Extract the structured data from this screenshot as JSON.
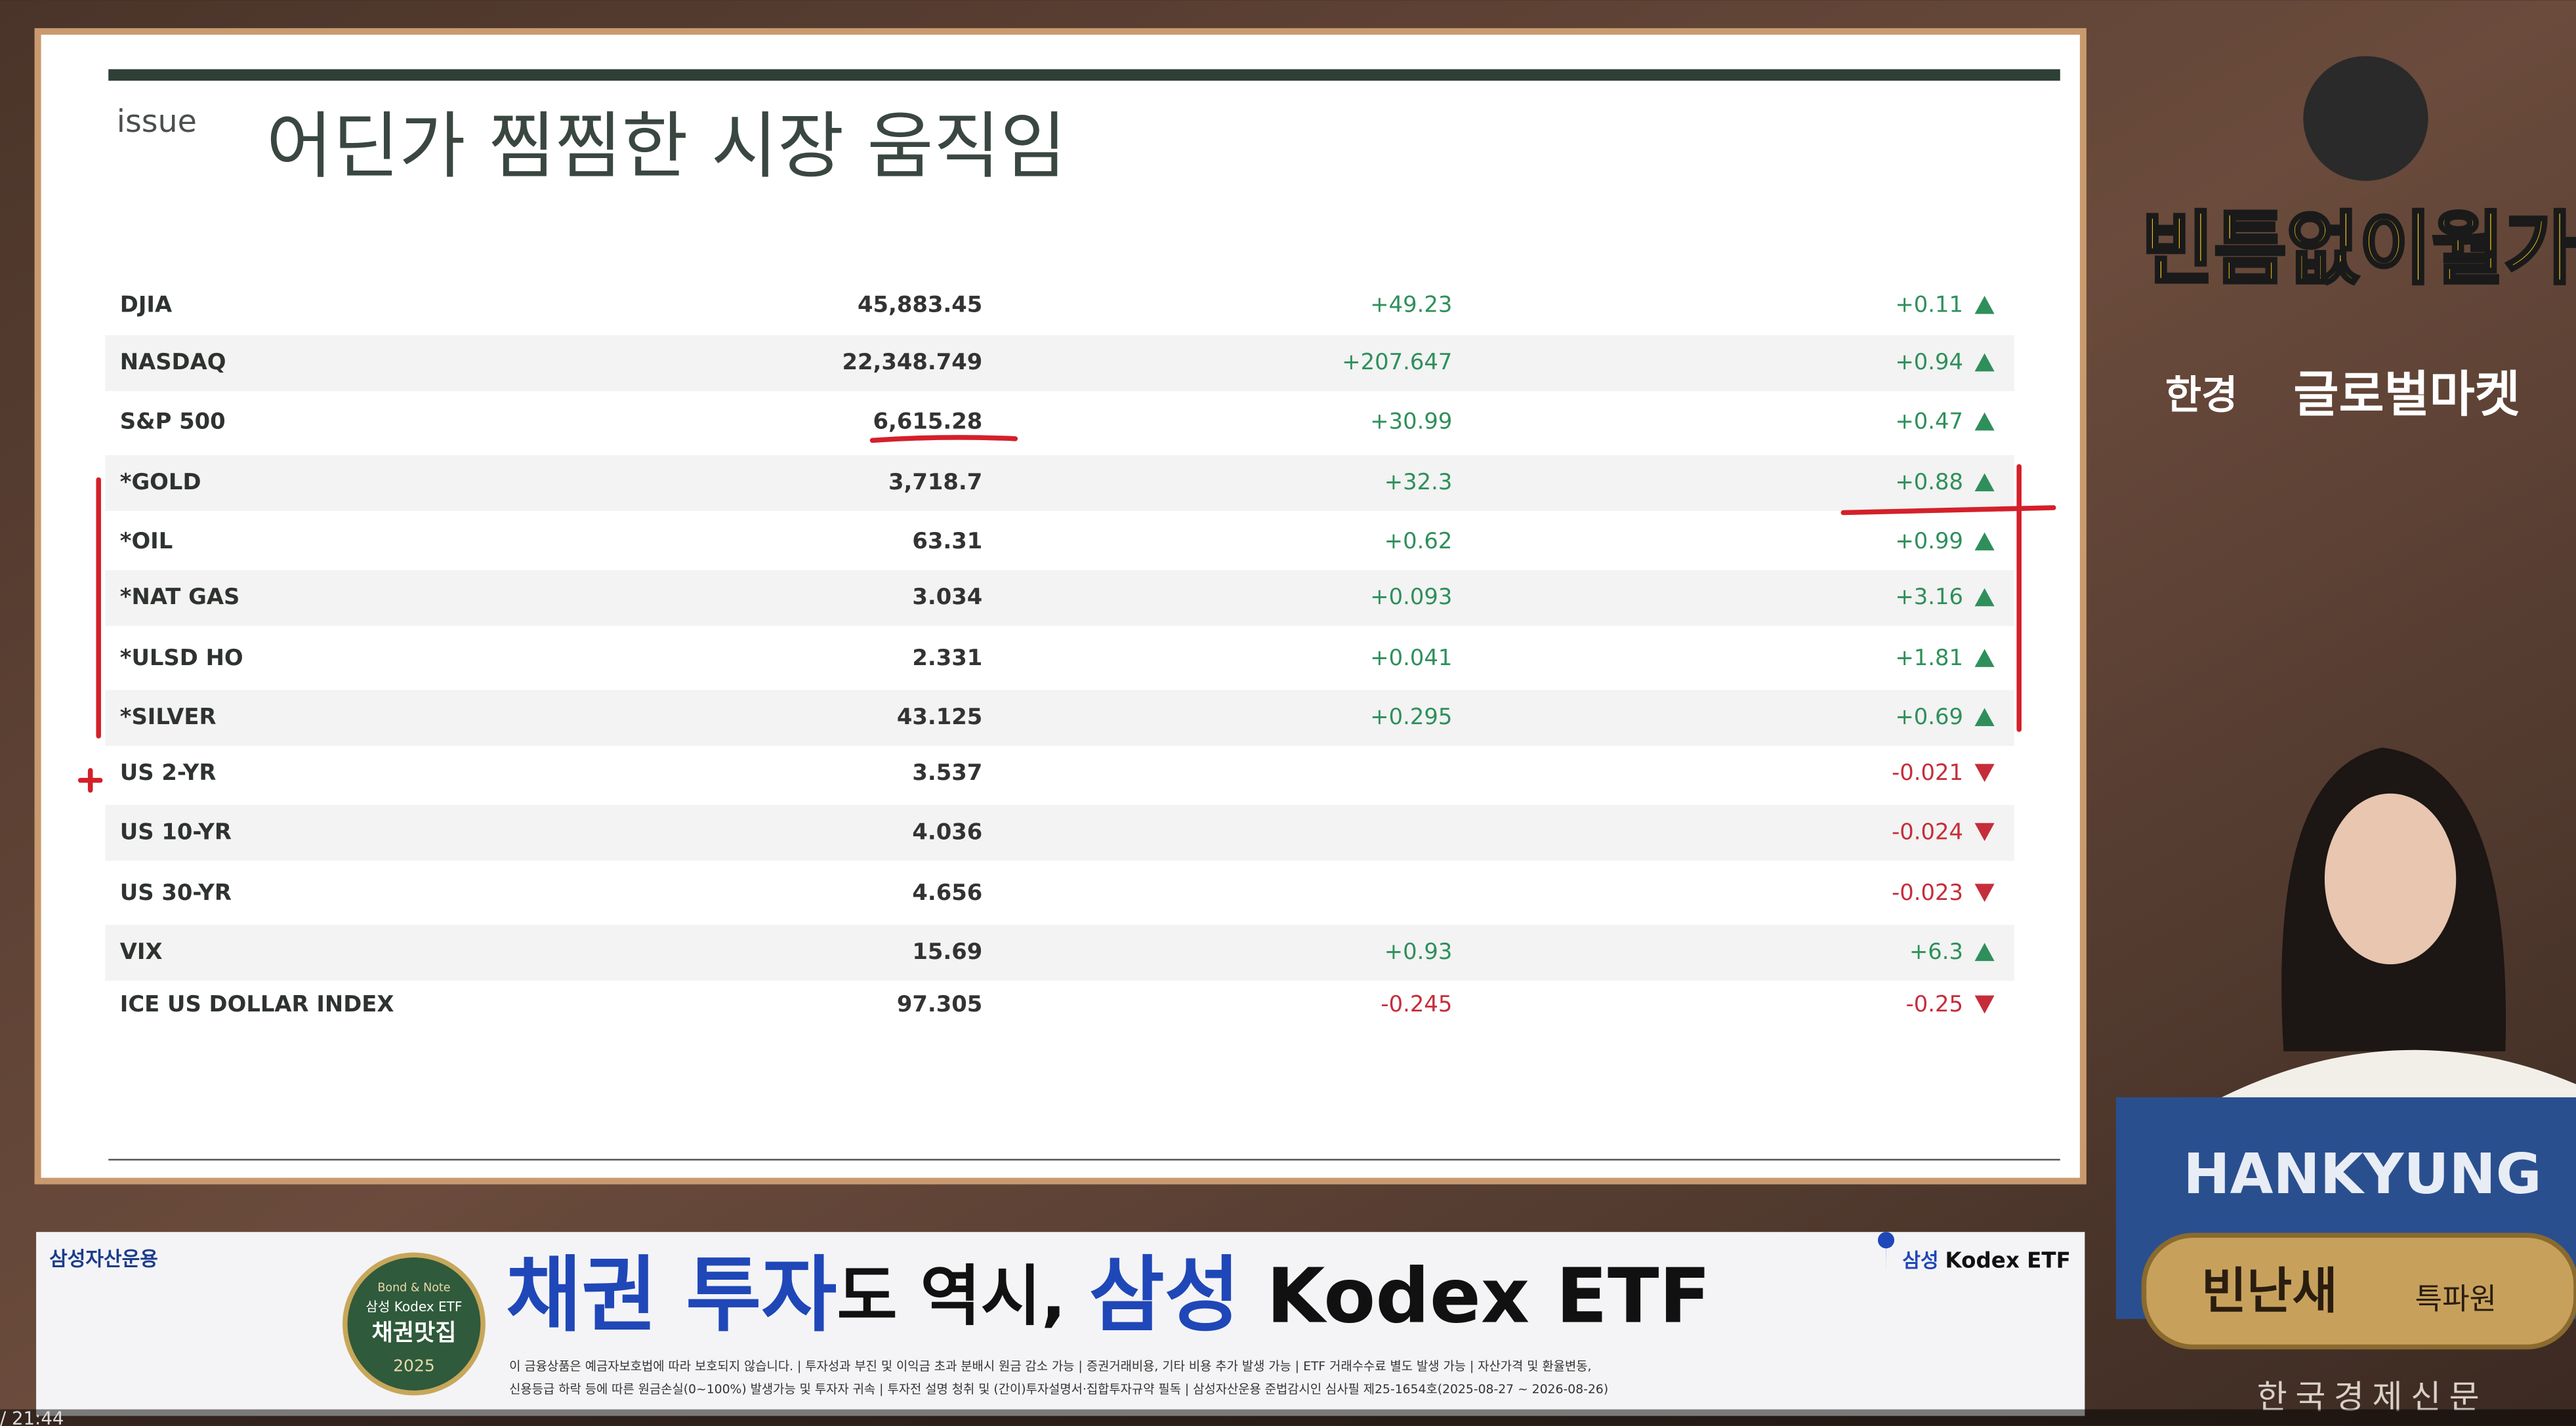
{
  "timestamp": "/ 21:44",
  "slide": {
    "label": "issue",
    "title": "어딘가 찜찜한 시장 움직임",
    "table": {
      "rows": [
        [
          "DJIA",
          "45,883.45",
          "+49.23",
          "+0.11"
        ],
        [
          "NASDAQ",
          "22,348.749",
          "+207.647",
          "+0.94"
        ],
        [
          "S&P 500",
          "6,615.28",
          "+30.99",
          "+0.47"
        ],
        [
          "*GOLD",
          "3,718.7",
          "+32.3",
          "+0.88"
        ],
        [
          "*OIL",
          "63.31",
          "+0.62",
          "+0.99"
        ],
        [
          "*NAT GAS",
          "3.034",
          "+0.093",
          "+3.16"
        ],
        [
          "*ULSD HO",
          "2.331",
          "+0.041",
          "+1.81"
        ],
        [
          "*SILVER",
          "43.125",
          "+0.295",
          "+0.69"
        ],
        [
          "US 2-YR",
          "3.537",
          null,
          "-0.021"
        ],
        [
          "US 10-YR",
          "4.036",
          null,
          "-0.024"
        ],
        [
          "US 30-YR",
          "4.656",
          null,
          "-0.023"
        ],
        [
          "VIX",
          "15.69",
          "+0.93",
          "+6.3"
        ],
        [
          "ICE US DOLLAR INDEX",
          "97.305",
          "-0.245",
          "-0.25"
        ]
      ]
    }
  },
  "ad": {
    "company": "삼성자산운용",
    "headline": [
      "채권 투자",
      "도 역시, ",
      "삼성",
      " Kodex ETF"
    ],
    "badge": [
      "Bond & Note",
      "삼성 Kodex ETF",
      "채권맛집",
      "2025"
    ],
    "logo": [
      "삼성",
      "Kodex ETF"
    ],
    "disclaimer": [
      "이 금융상품은 예금자보호법에 따라 보호되지 않습니다. | 투자성과 부진 및 이익금 초과 분배시 원금 감소 가능 | 증권거래비용, 기타 비용 추가 발생 가능 | ETF 거래수수료 별도 발생 가능 | 자산가격 및 환율변동,",
      "신용등급 하락 등에 따른 원금손실(0~100%) 발생가능 및 투자자 귀속 | 투자전 설명 청취 및 (간이)투자설명서·집합투자규약 필독 | 삼성자산운용 준법감시인 심사필 제25-1654호(2025-08-27 ~ 2026-08-26)"
    ]
  },
  "show": {
    "name": "빈틈없이월가",
    "brand": "한경",
    "program": "글로벌마켓",
    "desk": "HANKYUNG",
    "reporter": "빈난새",
    "role": "특파원",
    "network": "한국경제신문"
  }
}
